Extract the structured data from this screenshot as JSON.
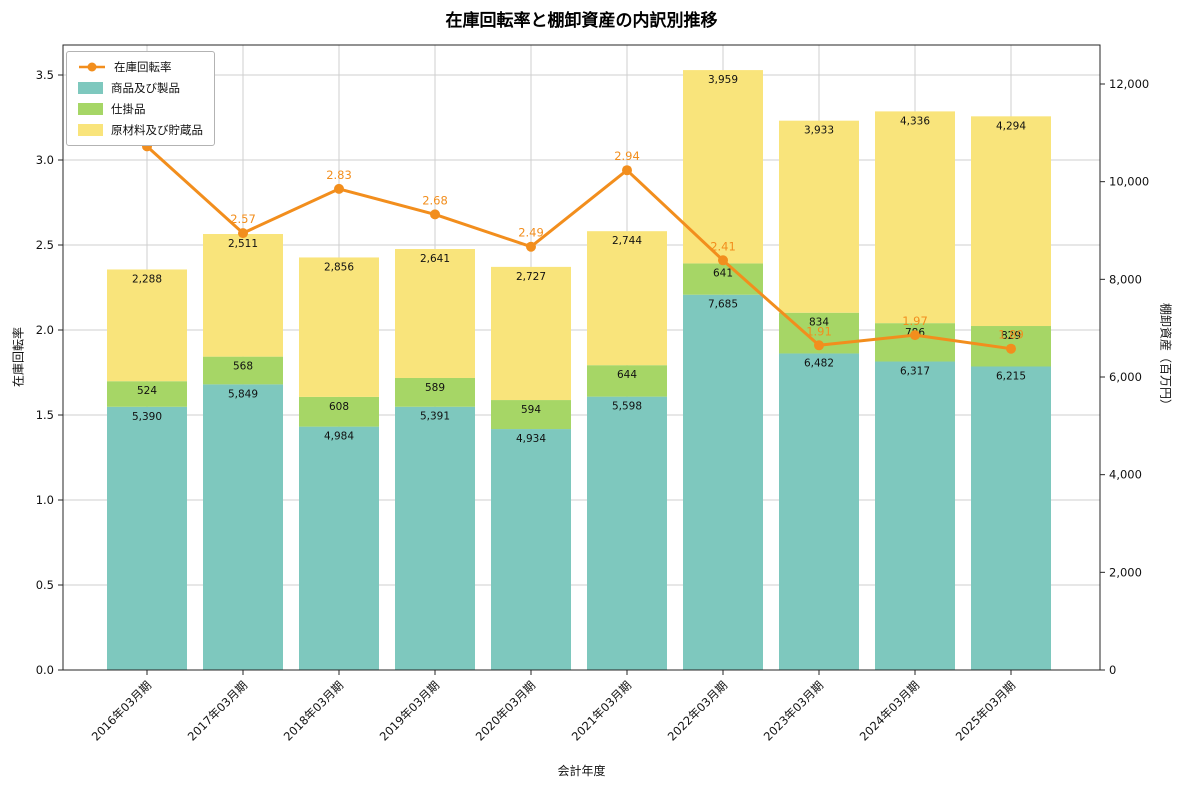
{
  "chart_data": {
    "type": "bar",
    "stacked": true,
    "title": "在庫回転率と棚卸資産の内訳別推移",
    "xlabel": "会計年度",
    "ylabel_left": "在庫回転率",
    "ylabel_right": "棚卸資産（百万円）",
    "categories": [
      "2016年03月期",
      "2017年03月期",
      "2018年03月期",
      "2019年03月期",
      "2020年03月期",
      "2021年03月期",
      "2022年03月期",
      "2023年03月期",
      "2024年03月期",
      "2025年03月期"
    ],
    "series": [
      {
        "name": "商品及び製品",
        "color": "#7ec8be",
        "values": [
          5390,
          5849,
          4984,
          5391,
          4934,
          5598,
          7685,
          6482,
          6317,
          6215
        ]
      },
      {
        "name": "仕掛品",
        "color": "#a6d666",
        "values": [
          524,
          568,
          608,
          589,
          594,
          644,
          641,
          834,
          786,
          829
        ]
      },
      {
        "name": "原材料及び貯蔵品",
        "color": "#f9e47b",
        "values": [
          2288,
          2511,
          2856,
          2641,
          2727,
          2744,
          3959,
          3933,
          4336,
          4294
        ]
      }
    ],
    "line_series": {
      "name": "在庫回転率",
      "color": "#f28e1d",
      "values": [
        3.08,
        2.57,
        2.83,
        2.68,
        2.49,
        2.94,
        2.41,
        1.91,
        1.97,
        1.89
      ]
    },
    "ylim_left": [
      0,
      3.5
    ],
    "ytick_step_left": 0.5,
    "yticks_left": [
      "0.0",
      "0.5",
      "1.0",
      "1.5",
      "2.0",
      "2.5",
      "3.0",
      "3.5"
    ],
    "ylim_right": [
      0,
      12000
    ],
    "ytick_step_right": 2000,
    "yticks_right": [
      "0",
      "2,000",
      "4,000",
      "6,000",
      "8,000",
      "10,000",
      "12,000"
    ],
    "grid": true,
    "legend_position": "upper left"
  }
}
